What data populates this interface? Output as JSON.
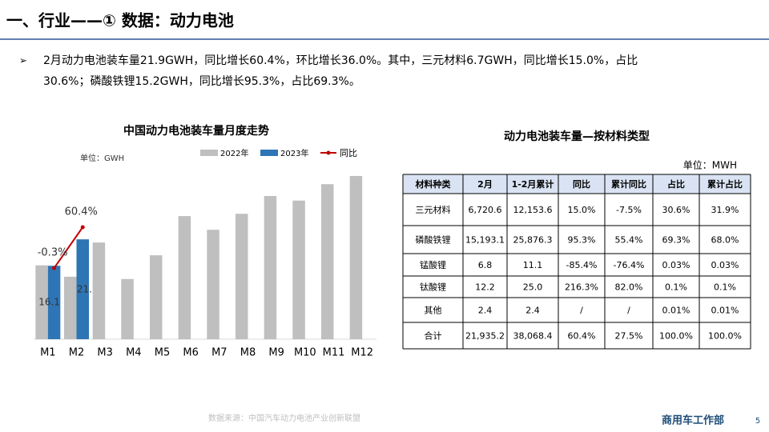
{
  "header": {
    "title": "一、行业——① 数据：动力电池"
  },
  "bullet": [
    "2月动力电池装车量21.9GWH，同比增长60.4%，环比增长36.0%。其中，三元材料6.7GWH，同比增长15.0%，占比",
    "30.6%；磷酸铁锂15.2GWH，同比增长95.3%，占比69.3%。"
  ],
  "chart_data": {
    "type": "bar",
    "title": "中国动力电池装车量月度走势",
    "unit": "单位：GWH",
    "categories": [
      "M1",
      "M2",
      "M3",
      "M4",
      "M5",
      "M6",
      "M7",
      "M8",
      "M9",
      "M10",
      "M11",
      "M12"
    ],
    "series": [
      {
        "name": "2022年",
        "color": "#bfbfbf",
        "values": [
          16.2,
          13.7,
          21.2,
          13.2,
          18.4,
          27.0,
          24.0,
          27.5,
          31.4,
          30.4,
          34.0,
          35.8
        ]
      },
      {
        "name": "2023年",
        "color": "#2e75b6",
        "values": [
          16.1,
          21.9,
          null,
          null,
          null,
          null,
          null,
          null,
          null,
          null,
          null,
          null
        ]
      },
      {
        "name": "同比",
        "color": "#c00000",
        "type": "line",
        "axis": "y2",
        "values": [
          -0.3,
          60.4,
          null,
          null,
          null,
          null,
          null,
          null,
          null,
          null,
          null,
          null
        ],
        "value_labels": [
          "-0.3%",
          "60.4%",
          null,
          null,
          null,
          null,
          null,
          null,
          null,
          null,
          null,
          null
        ]
      }
    ],
    "ylim": [
      0,
      40
    ],
    "y2lim": [
      -106,
      165
    ],
    "legend": "top-right",
    "grid": false
  },
  "table": {
    "title": "动力电池装车量—按材料类型",
    "unit": "单位：MWH",
    "header": [
      "材料种类",
      "2月",
      "1-2月累计",
      "同比",
      "累计同比",
      "占比",
      "累计占比"
    ],
    "rows": [
      [
        "三元材料",
        "6,720.6",
        "12,153.6",
        "15.0%",
        "-7.5%",
        "30.6%",
        "31.9%"
      ],
      [
        "磷酸铁锂",
        "15,193.1",
        "25,876.3",
        "95.3%",
        "55.4%",
        "69.3%",
        "68.0%"
      ],
      [
        "锰酸锂",
        "6.8",
        "11.1",
        "-85.4%",
        "-76.4%",
        "0.03%",
        "0.03%"
      ],
      [
        "钛酸锂",
        "12.2",
        "25.0",
        "216.3%",
        "82.0%",
        "0.1%",
        "0.1%"
      ],
      [
        "其他",
        "2.4",
        "2.4",
        "/",
        "/",
        "0.01%",
        "0.01%"
      ],
      [
        "合计",
        "21,935.2",
        "38,068.4",
        "60.4%",
        "27.5%",
        "100.0%",
        "100.0%"
      ]
    ]
  },
  "footer": {
    "source": "数据来源：中国汽车动力电池产业创新联盟",
    "dept": "商用车工作部",
    "page": "5"
  }
}
